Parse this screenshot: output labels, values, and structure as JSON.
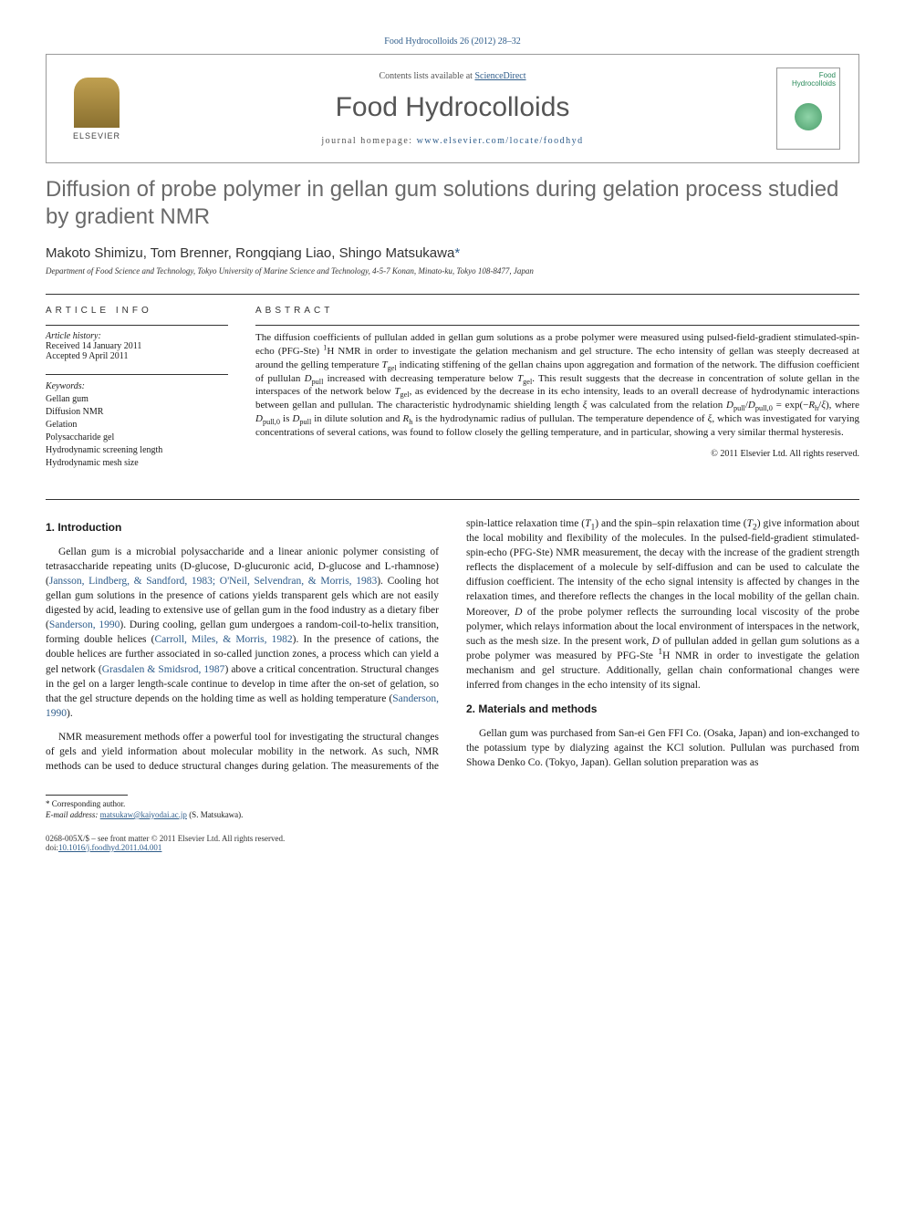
{
  "citation": "Food Hydrocolloids 26 (2012) 28–32",
  "header": {
    "publisher": "ELSEVIER",
    "contents_prefix": "Contents lists available at ",
    "contents_link": "ScienceDirect",
    "journal": "Food Hydrocolloids",
    "homepage_prefix": "journal homepage: ",
    "homepage_url": "www.elsevier.com/locate/foodhyd",
    "cover_title_line1": "Food",
    "cover_title_line2": "Hydrocolloids"
  },
  "article": {
    "title": "Diffusion of probe polymer in gellan gum solutions during gelation process studied by gradient NMR",
    "authors": "Makoto Shimizu, Tom Brenner, Rongqiang Liao, Shingo Matsukawa",
    "corr_mark": "*",
    "affiliation": "Department of Food Science and Technology, Tokyo University of Marine Science and Technology, 4-5-7 Konan, Minato-ku, Tokyo 108-8477, Japan"
  },
  "info": {
    "heading": "ARTICLE INFO",
    "history_label": "Article history:",
    "received": "Received 14 January 2011",
    "accepted": "Accepted 9 April 2011",
    "keywords_label": "Keywords:",
    "keywords": [
      "Gellan gum",
      "Diffusion NMR",
      "Gelation",
      "Polysaccharide gel",
      "Hydrodynamic screening length",
      "Hydrodynamic mesh size"
    ]
  },
  "abstract": {
    "heading": "ABSTRACT",
    "text_html": "The diffusion coefficients of pullulan added in gellan gum solutions as a probe polymer were measured using pulsed-field-gradient stimulated-spin-echo (PFG-Ste) <sup>1</sup>H NMR in order to investigate the gelation mechanism and gel structure. The echo intensity of gellan was steeply decreased at around the gelling temperature <i>T</i><sub>gel</sub> indicating stiffening of the gellan chains upon aggregation and formation of the network. The diffusion coefficient of pullulan <i>D</i><sub>pull</sub> increased with decreasing temperature below <i>T</i><sub>gel</sub>. This result suggests that the decrease in concentration of solute gellan in the interspaces of the network below <i>T</i><sub>gel</sub>, as evidenced by the decrease in its echo intensity, leads to an overall decrease of hydrodynamic interactions between gellan and pullulan. The characteristic hydrodynamic shielding length <i>ξ</i> was calculated from the relation <i>D</i><sub>pull</sub>/<i>D</i><sub>pull,0</sub> = exp(−<i>R</i><sub>h</sub>/<i>ξ</i>), where <i>D</i><sub>pull,0</sub> is <i>D</i><sub>pull</sub> in dilute solution and <i>R</i><sub>h</sub> is the hydrodynamic radius of pullulan. The temperature dependence of <i>ξ</i>, which was investigated for varying concentrations of several cations, was found to follow closely the gelling temperature, and in particular, showing a very similar thermal hysteresis.",
    "copyright": "© 2011 Elsevier Ltd. All rights reserved."
  },
  "body": {
    "sec1_heading": "1. Introduction",
    "sec1_p1_html": "Gellan gum is a microbial polysaccharide and a linear anionic polymer consisting of tetrasaccharide repeating units (D-glucose, D-glucuronic acid, D-glucose and L-rhamnose) (<span class='ref-link'>Jansson, Lindberg, &amp; Sandford, 1983; O'Neil, Selvendran, &amp; Morris, 1983</span>). Cooling hot gellan gum solutions in the presence of cations yields transparent gels which are not easily digested by acid, leading to extensive use of gellan gum in the food industry as a dietary fiber (<span class='ref-link'>Sanderson, 1990</span>). During cooling, gellan gum undergoes a random-coil-to-helix transition, forming double helices (<span class='ref-link'>Carroll, Miles, &amp; Morris, 1982</span>). In the presence of cations, the double helices are further associated in so-called junction zones, a process which can yield a gel network (<span class='ref-link'>Grasdalen &amp; Smidsrod, 1987</span>) above a critical concentration. Structural changes in the gel on a larger length-scale continue to develop in time after the on-set of gelation, so that the gel structure depends on the holding time as well as holding temperature (<span class='ref-link'>Sanderson, 1990</span>).",
    "sec1_p2_html": "NMR measurement methods offer a powerful tool for investigating the structural changes of gels and yield information about molecular mobility in the network. As such, NMR methods can be used to deduce structural changes during gelation. The measurements of the spin-lattice relaxation time (<i>T</i><sub>1</sub>) and the spin–spin relaxation time (<i>T</i><sub>2</sub>) give information about the local mobility and flexibility of the molecules. In the pulsed-field-gradient stimulated-spin-echo (PFG-Ste) NMR measurement, the decay with the increase of the gradient strength reflects the displacement of a molecule by self-diffusion and can be used to calculate the diffusion coefficient. The intensity of the echo signal intensity is affected by changes in the relaxation times, and therefore reflects the changes in the local mobility of the gellan chain. Moreover, <i>D</i> of the probe polymer reflects the surrounding local viscosity of the probe polymer, which relays information about the local environment of interspaces in the network, such as the mesh size. In the present work, <i>D</i> of pullulan added in gellan gum solutions as a probe polymer was measured by PFG-Ste <sup>1</sup>H NMR in order to investigate the gelation mechanism and gel structure. Additionally, gellan chain conformational changes were inferred from changes in the echo intensity of its signal.",
    "sec2_heading": "2. Materials and methods",
    "sec2_p1_html": "Gellan gum was purchased from San-ei Gen FFI Co. (Osaka, Japan) and ion-exchanged to the potassium type by dialyzing against the KCl solution. Pullulan was purchased from Showa Denko Co. (Tokyo, Japan). Gellan solution preparation was as"
  },
  "footnote": {
    "corr_label": "* Corresponding author.",
    "email_label": "E-mail address:",
    "email": "matsukaw@kaiyodai.ac.jp",
    "email_suffix": "(S. Matsukawa)."
  },
  "footer": {
    "issn_line": "0268-005X/$ – see front matter © 2011 Elsevier Ltd. All rights reserved.",
    "doi_label": "doi:",
    "doi": "10.1016/j.foodhyd.2011.04.001"
  },
  "colors": {
    "link": "#2e5c8a",
    "title_gray": "#6a6a6a",
    "cover_green": "#2a8a5a"
  }
}
